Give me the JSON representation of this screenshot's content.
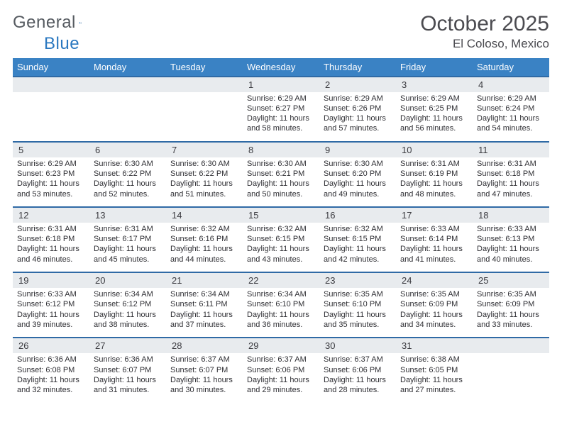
{
  "brand": {
    "part1": "General",
    "part2": "Blue"
  },
  "title": {
    "month": "October 2025",
    "location": "El Coloso, Mexico"
  },
  "colors": {
    "header_bg": "#3a82c4",
    "header_text": "#ffffff",
    "divider": "#2f6aa5",
    "daynum_bg": "#e8ebee",
    "text": "#2e2e33",
    "title_text": "#4b4b50",
    "brand_gray": "#555a60",
    "brand_blue": "#2a78c0"
  },
  "weekdays": [
    "Sunday",
    "Monday",
    "Tuesday",
    "Wednesday",
    "Thursday",
    "Friday",
    "Saturday"
  ],
  "weeks": [
    [
      null,
      null,
      null,
      {
        "n": "1",
        "sr": "6:29 AM",
        "ss": "6:27 PM",
        "dh": "11",
        "dm": "58"
      },
      {
        "n": "2",
        "sr": "6:29 AM",
        "ss": "6:26 PM",
        "dh": "11",
        "dm": "57"
      },
      {
        "n": "3",
        "sr": "6:29 AM",
        "ss": "6:25 PM",
        "dh": "11",
        "dm": "56"
      },
      {
        "n": "4",
        "sr": "6:29 AM",
        "ss": "6:24 PM",
        "dh": "11",
        "dm": "54"
      }
    ],
    [
      {
        "n": "5",
        "sr": "6:29 AM",
        "ss": "6:23 PM",
        "dh": "11",
        "dm": "53"
      },
      {
        "n": "6",
        "sr": "6:30 AM",
        "ss": "6:22 PM",
        "dh": "11",
        "dm": "52"
      },
      {
        "n": "7",
        "sr": "6:30 AM",
        "ss": "6:22 PM",
        "dh": "11",
        "dm": "51"
      },
      {
        "n": "8",
        "sr": "6:30 AM",
        "ss": "6:21 PM",
        "dh": "11",
        "dm": "50"
      },
      {
        "n": "9",
        "sr": "6:30 AM",
        "ss": "6:20 PM",
        "dh": "11",
        "dm": "49"
      },
      {
        "n": "10",
        "sr": "6:31 AM",
        "ss": "6:19 PM",
        "dh": "11",
        "dm": "48"
      },
      {
        "n": "11",
        "sr": "6:31 AM",
        "ss": "6:18 PM",
        "dh": "11",
        "dm": "47"
      }
    ],
    [
      {
        "n": "12",
        "sr": "6:31 AM",
        "ss": "6:18 PM",
        "dh": "11",
        "dm": "46"
      },
      {
        "n": "13",
        "sr": "6:31 AM",
        "ss": "6:17 PM",
        "dh": "11",
        "dm": "45"
      },
      {
        "n": "14",
        "sr": "6:32 AM",
        "ss": "6:16 PM",
        "dh": "11",
        "dm": "44"
      },
      {
        "n": "15",
        "sr": "6:32 AM",
        "ss": "6:15 PM",
        "dh": "11",
        "dm": "43"
      },
      {
        "n": "16",
        "sr": "6:32 AM",
        "ss": "6:15 PM",
        "dh": "11",
        "dm": "42"
      },
      {
        "n": "17",
        "sr": "6:33 AM",
        "ss": "6:14 PM",
        "dh": "11",
        "dm": "41"
      },
      {
        "n": "18",
        "sr": "6:33 AM",
        "ss": "6:13 PM",
        "dh": "11",
        "dm": "40"
      }
    ],
    [
      {
        "n": "19",
        "sr": "6:33 AM",
        "ss": "6:12 PM",
        "dh": "11",
        "dm": "39"
      },
      {
        "n": "20",
        "sr": "6:34 AM",
        "ss": "6:12 PM",
        "dh": "11",
        "dm": "38"
      },
      {
        "n": "21",
        "sr": "6:34 AM",
        "ss": "6:11 PM",
        "dh": "11",
        "dm": "37"
      },
      {
        "n": "22",
        "sr": "6:34 AM",
        "ss": "6:10 PM",
        "dh": "11",
        "dm": "36"
      },
      {
        "n": "23",
        "sr": "6:35 AM",
        "ss": "6:10 PM",
        "dh": "11",
        "dm": "35"
      },
      {
        "n": "24",
        "sr": "6:35 AM",
        "ss": "6:09 PM",
        "dh": "11",
        "dm": "34"
      },
      {
        "n": "25",
        "sr": "6:35 AM",
        "ss": "6:09 PM",
        "dh": "11",
        "dm": "33"
      }
    ],
    [
      {
        "n": "26",
        "sr": "6:36 AM",
        "ss": "6:08 PM",
        "dh": "11",
        "dm": "32"
      },
      {
        "n": "27",
        "sr": "6:36 AM",
        "ss": "6:07 PM",
        "dh": "11",
        "dm": "31"
      },
      {
        "n": "28",
        "sr": "6:37 AM",
        "ss": "6:07 PM",
        "dh": "11",
        "dm": "30"
      },
      {
        "n": "29",
        "sr": "6:37 AM",
        "ss": "6:06 PM",
        "dh": "11",
        "dm": "29"
      },
      {
        "n": "30",
        "sr": "6:37 AM",
        "ss": "6:06 PM",
        "dh": "11",
        "dm": "28"
      },
      {
        "n": "31",
        "sr": "6:38 AM",
        "ss": "6:05 PM",
        "dh": "11",
        "dm": "27"
      },
      null
    ]
  ]
}
